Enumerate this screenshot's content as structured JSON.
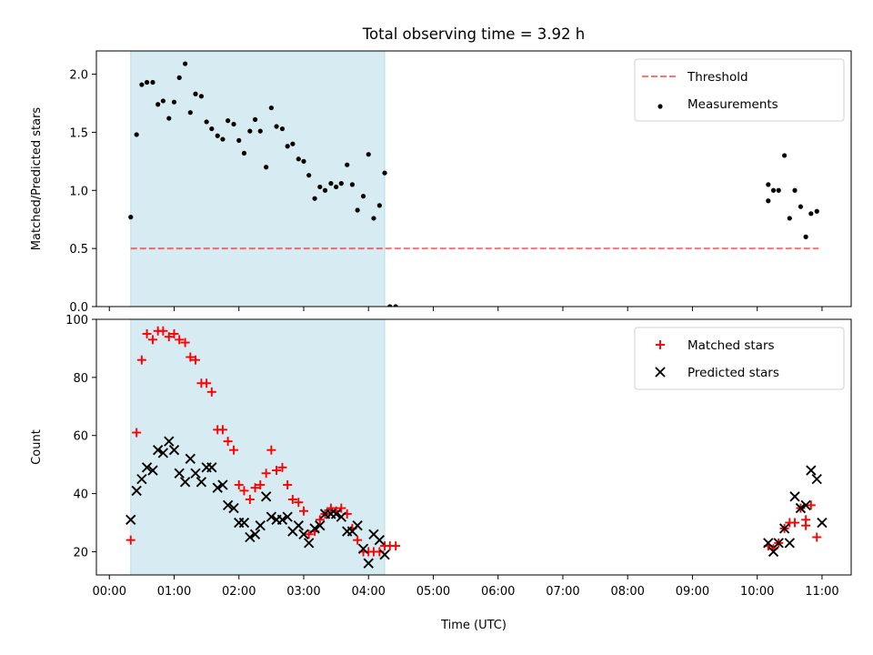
{
  "figure": {
    "title": "Total observing time = 3.92 h",
    "xlabel": "Time (UTC)"
  },
  "colors": {
    "band": "#add8e6",
    "threshold": "#ff0000",
    "matched": "#ff0000",
    "predicted": "#000000",
    "measurements": "#000000"
  },
  "chart_data": [
    {
      "type": "scatter",
      "ylabel": "Matched/Predicted stars",
      "xlim": [
        -0.2,
        11.45
      ],
      "ylim": [
        0,
        2.2
      ],
      "yticks": [
        0.0,
        0.5,
        1.0,
        1.5,
        2.0
      ],
      "ytick_labels": [
        "0.0",
        "0.5",
        "1.0",
        "1.5",
        "2.0"
      ],
      "shaded_band": [
        0.33,
        4.25
      ],
      "legend_position": "top-right",
      "threshold": {
        "name": "Threshold",
        "y": 0.5,
        "x_range": [
          0.33,
          10.95
        ]
      },
      "series": [
        {
          "name": "Measurements",
          "marker": "dot",
          "points": [
            [
              0.33,
              0.77
            ],
            [
              0.42,
              1.48
            ],
            [
              0.5,
              1.91
            ],
            [
              0.58,
              1.93
            ],
            [
              0.67,
              1.93
            ],
            [
              0.75,
              1.74
            ],
            [
              0.83,
              1.77
            ],
            [
              0.92,
              1.62
            ],
            [
              1.0,
              1.76
            ],
            [
              1.08,
              1.97
            ],
            [
              1.17,
              2.09
            ],
            [
              1.25,
              1.67
            ],
            [
              1.33,
              1.83
            ],
            [
              1.42,
              1.81
            ],
            [
              1.5,
              1.59
            ],
            [
              1.58,
              1.53
            ],
            [
              1.67,
              1.47
            ],
            [
              1.75,
              1.44
            ],
            [
              1.83,
              1.6
            ],
            [
              1.92,
              1.57
            ],
            [
              2.0,
              1.43
            ],
            [
              2.08,
              1.32
            ],
            [
              2.17,
              1.51
            ],
            [
              2.25,
              1.61
            ],
            [
              2.33,
              1.51
            ],
            [
              2.42,
              1.2
            ],
            [
              2.5,
              1.71
            ],
            [
              2.58,
              1.55
            ],
            [
              2.67,
              1.53
            ],
            [
              2.75,
              1.38
            ],
            [
              2.83,
              1.4
            ],
            [
              2.92,
              1.27
            ],
            [
              3.0,
              1.25
            ],
            [
              3.08,
              1.13
            ],
            [
              3.17,
              0.93
            ],
            [
              3.25,
              1.03
            ],
            [
              3.33,
              1.0
            ],
            [
              3.42,
              1.06
            ],
            [
              3.5,
              1.03
            ],
            [
              3.58,
              1.06
            ],
            [
              3.67,
              1.22
            ],
            [
              3.75,
              1.05
            ],
            [
              3.83,
              0.83
            ],
            [
              3.92,
              0.95
            ],
            [
              4.0,
              1.31
            ],
            [
              4.08,
              0.76
            ],
            [
              4.17,
              0.87
            ],
            [
              4.25,
              1.15
            ],
            [
              4.33,
              0.0
            ],
            [
              4.42,
              0.0
            ],
            [
              10.17,
              1.05
            ],
            [
              10.17,
              0.91
            ],
            [
              10.25,
              1.0
            ],
            [
              10.33,
              1.0
            ],
            [
              10.42,
              1.3
            ],
            [
              10.5,
              0.76
            ],
            [
              10.58,
              1.0
            ],
            [
              10.67,
              0.86
            ],
            [
              10.75,
              0.6
            ],
            [
              10.83,
              0.8
            ],
            [
              10.92,
              0.82
            ]
          ]
        }
      ]
    },
    {
      "type": "scatter",
      "ylabel": "Count",
      "xlim": [
        -0.2,
        11.45
      ],
      "ylim": [
        12,
        100
      ],
      "yticks": [
        20,
        40,
        60,
        80,
        100
      ],
      "ytick_labels": [
        "20",
        "40",
        "60",
        "80",
        "100"
      ],
      "shaded_band": [
        0.33,
        4.25
      ],
      "legend_position": "top-right",
      "xticks": [
        0,
        1,
        2,
        3,
        4,
        5,
        6,
        7,
        8,
        9,
        10,
        11
      ],
      "xtick_labels": [
        "00:00",
        "01:00",
        "02:00",
        "03:00",
        "04:00",
        "05:00",
        "06:00",
        "07:00",
        "08:00",
        "09:00",
        "10:00",
        "11:00"
      ],
      "series": [
        {
          "name": "Matched stars",
          "marker": "plus",
          "points": [
            [
              0.33,
              24
            ],
            [
              0.42,
              61
            ],
            [
              0.5,
              86
            ],
            [
              0.58,
              95
            ],
            [
              0.67,
              93
            ],
            [
              0.75,
              96
            ],
            [
              0.83,
              96
            ],
            [
              0.92,
              94
            ],
            [
              1.0,
              95
            ],
            [
              1.08,
              93
            ],
            [
              1.17,
              92
            ],
            [
              1.25,
              87
            ],
            [
              1.33,
              86
            ],
            [
              1.42,
              78
            ],
            [
              1.5,
              78
            ],
            [
              1.58,
              75
            ],
            [
              1.67,
              62
            ],
            [
              1.75,
              62
            ],
            [
              1.83,
              58
            ],
            [
              1.92,
              55
            ],
            [
              2.0,
              43
            ],
            [
              2.08,
              41
            ],
            [
              2.17,
              38
            ],
            [
              2.25,
              42
            ],
            [
              2.33,
              43
            ],
            [
              2.42,
              47
            ],
            [
              2.5,
              55
            ],
            [
              2.58,
              48
            ],
            [
              2.67,
              49
            ],
            [
              2.75,
              43
            ],
            [
              2.83,
              38
            ],
            [
              2.92,
              37
            ],
            [
              3.0,
              34
            ],
            [
              3.08,
              26
            ],
            [
              3.17,
              27
            ],
            [
              3.25,
              31
            ],
            [
              3.33,
              33
            ],
            [
              3.42,
              35
            ],
            [
              3.5,
              34
            ],
            [
              3.58,
              35
            ],
            [
              3.67,
              33
            ],
            [
              3.75,
              28
            ],
            [
              3.83,
              24
            ],
            [
              3.92,
              20
            ],
            [
              4.0,
              20
            ],
            [
              4.08,
              20
            ],
            [
              4.17,
              20
            ],
            [
              4.25,
              22
            ],
            [
              4.33,
              22
            ],
            [
              4.42,
              22
            ],
            [
              10.17,
              22
            ],
            [
              10.25,
              21
            ],
            [
              10.33,
              23
            ],
            [
              10.42,
              28
            ],
            [
              10.5,
              30
            ],
            [
              10.58,
              30
            ],
            [
              10.67,
              35
            ],
            [
              10.75,
              31
            ],
            [
              10.75,
              29
            ],
            [
              10.83,
              36
            ],
            [
              10.92,
              25
            ]
          ]
        },
        {
          "name": "Predicted stars",
          "marker": "x",
          "points": [
            [
              0.33,
              31
            ],
            [
              0.42,
              41
            ],
            [
              0.5,
              45
            ],
            [
              0.58,
              49
            ],
            [
              0.67,
              48
            ],
            [
              0.75,
              55
            ],
            [
              0.83,
              54
            ],
            [
              0.92,
              58
            ],
            [
              1.0,
              55
            ],
            [
              1.08,
              47
            ],
            [
              1.17,
              44
            ],
            [
              1.25,
              52
            ],
            [
              1.33,
              47
            ],
            [
              1.42,
              44
            ],
            [
              1.5,
              49
            ],
            [
              1.58,
              49
            ],
            [
              1.67,
              42
            ],
            [
              1.75,
              43
            ],
            [
              1.83,
              36
            ],
            [
              1.92,
              35
            ],
            [
              2.0,
              30
            ],
            [
              2.08,
              30
            ],
            [
              2.17,
              25
            ],
            [
              2.25,
              26
            ],
            [
              2.33,
              29
            ],
            [
              2.42,
              39
            ],
            [
              2.5,
              32
            ],
            [
              2.58,
              31
            ],
            [
              2.67,
              31
            ],
            [
              2.75,
              32
            ],
            [
              2.83,
              27
            ],
            [
              2.92,
              29
            ],
            [
              3.0,
              26
            ],
            [
              3.08,
              23
            ],
            [
              3.17,
              28
            ],
            [
              3.25,
              29
            ],
            [
              3.33,
              33
            ],
            [
              3.42,
              33
            ],
            [
              3.5,
              33
            ],
            [
              3.58,
              32
            ],
            [
              3.67,
              27
            ],
            [
              3.75,
              27
            ],
            [
              3.83,
              29
            ],
            [
              3.92,
              21
            ],
            [
              4.0,
              16
            ],
            [
              4.08,
              26
            ],
            [
              4.17,
              24
            ],
            [
              4.25,
              19
            ],
            [
              10.17,
              23
            ],
            [
              10.25,
              20
            ],
            [
              10.33,
              23
            ],
            [
              10.42,
              28
            ],
            [
              10.5,
              23
            ],
            [
              10.58,
              39
            ],
            [
              10.67,
              35
            ],
            [
              10.75,
              36
            ],
            [
              10.83,
              48
            ],
            [
              10.92,
              45
            ],
            [
              11.0,
              30
            ]
          ]
        }
      ]
    }
  ]
}
